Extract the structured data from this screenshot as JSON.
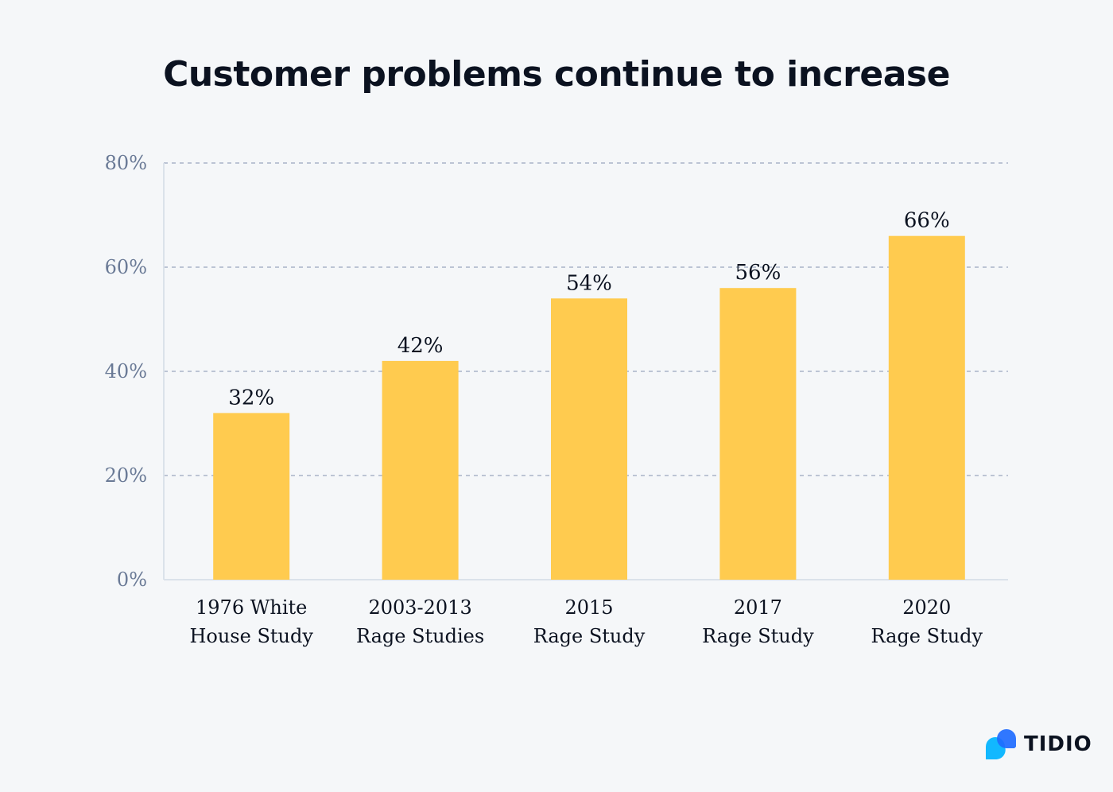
{
  "chart_data": {
    "type": "bar",
    "title": "Customer problems continue to increase",
    "categories": [
      [
        "1976 White",
        "House Study"
      ],
      [
        "2003-2013",
        "Rage Studies"
      ],
      [
        "2015",
        "Rage Study"
      ],
      [
        "2017",
        "Rage Study"
      ],
      [
        "2020",
        "Rage Study"
      ]
    ],
    "values": [
      32,
      42,
      54,
      56,
      66
    ],
    "value_labels": [
      "32%",
      "42%",
      "54%",
      "56%",
      "66%"
    ],
    "ylim": [
      0,
      80
    ],
    "yticks": [
      0,
      20,
      40,
      60,
      80
    ],
    "ytick_labels": [
      "0%",
      "20%",
      "40%",
      "60%",
      "80%"
    ],
    "grid": "horizontal dashed",
    "xlabel": "",
    "ylabel": "",
    "bar_color": "#ffcb4f"
  },
  "brand": {
    "name": "TIDIO",
    "colors": [
      "#1e6bff",
      "#12b8ff"
    ]
  }
}
